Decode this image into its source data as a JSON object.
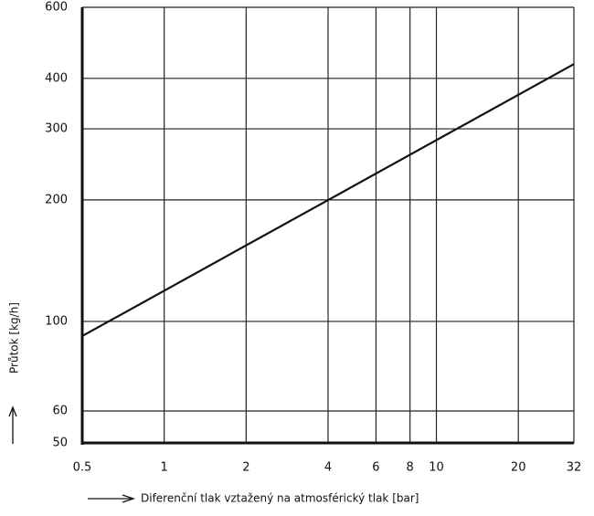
{
  "chart_data": {
    "type": "line",
    "x_label": "Diferenční tlak vztažený na atmosférický tlak [bar]",
    "y_label": "Průtok [kg/h]",
    "x": [
      0.5,
      32
    ],
    "series": [
      {
        "name": "Průtok",
        "color": "#111111",
        "values": [
          92,
          434
        ]
      }
    ],
    "xlim": [
      0.5,
      32
    ],
    "xticks": [
      0.5,
      1,
      2,
      4,
      6,
      8,
      10,
      20,
      32
    ],
    "ylim": [
      50,
      600
    ],
    "yticks": [
      50,
      60,
      100,
      200,
      300,
      400,
      600
    ],
    "xscale": "log",
    "yscale": "log",
    "grid": true
  }
}
